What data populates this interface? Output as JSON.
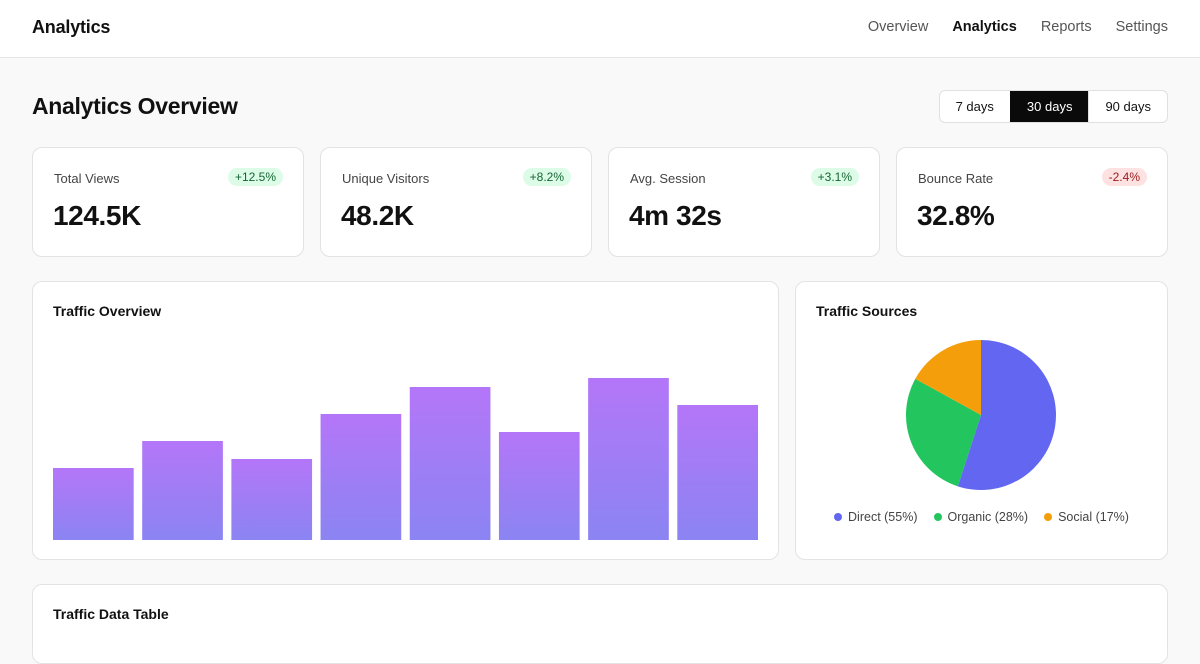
{
  "header": {
    "app_title": "Analytics",
    "nav": [
      {
        "label": "Overview",
        "active": false
      },
      {
        "label": "Analytics",
        "active": true
      },
      {
        "label": "Reports",
        "active": false
      },
      {
        "label": "Settings",
        "active": false
      }
    ]
  },
  "page": {
    "title": "Analytics Overview",
    "ranges": [
      {
        "label": "7 days",
        "active": false
      },
      {
        "label": "30 days",
        "active": true
      },
      {
        "label": "90 days",
        "active": false
      }
    ]
  },
  "stats": [
    {
      "label": "Total Views",
      "value": "124.5K",
      "change": "+12.5%",
      "trend": "up"
    },
    {
      "label": "Unique Visitors",
      "value": "48.2K",
      "change": "+8.2%",
      "trend": "up"
    },
    {
      "label": "Avg. Session",
      "value": "4m 32s",
      "change": "+3.1%",
      "trend": "up"
    },
    {
      "label": "Bounce Rate",
      "value": "32.8%",
      "change": "-2.4%",
      "trend": "down"
    }
  ],
  "traffic_overview": {
    "title": "Traffic Overview"
  },
  "traffic_sources": {
    "title": "Traffic Sources",
    "legend": [
      "Direct (55%)",
      "Organic (28%)",
      "Social (17%)"
    ]
  },
  "data_table": {
    "title": "Traffic Data Table"
  },
  "colors": {
    "bar_top": "#b476f8",
    "bar_bottom": "#8b84f2",
    "direct": "#6366f1",
    "organic": "#22c55e",
    "social": "#f59e0b"
  },
  "chart_data": [
    {
      "type": "bar",
      "title": "Traffic Overview",
      "values": [
        40,
        55,
        45,
        70,
        85,
        60,
        90,
        75
      ],
      "ylim": [
        0,
        110
      ],
      "grid": false
    },
    {
      "type": "pie",
      "title": "Traffic Sources",
      "categories": [
        "Direct",
        "Organic",
        "Social"
      ],
      "values": [
        55,
        28,
        17
      ],
      "legend": "bottom"
    }
  ]
}
